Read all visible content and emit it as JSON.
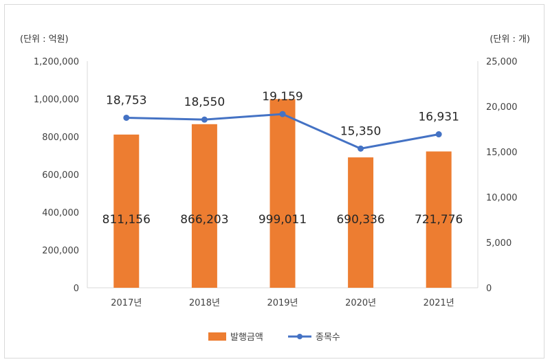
{
  "chart_data": {
    "type": "bar",
    "categories": [
      "2017년",
      "2018년",
      "2019년",
      "2020년",
      "2021년"
    ],
    "series": [
      {
        "name": "발행금액",
        "type": "bar",
        "axis": "left",
        "values": [
          811156,
          866203,
          999011,
          690336,
          721776
        ],
        "labels": [
          "811,156",
          "866,203",
          "999,011",
          "690,336",
          "721,776"
        ],
        "color": "#ed7d31"
      },
      {
        "name": "종목수",
        "type": "line",
        "axis": "right",
        "values": [
          18753,
          18550,
          19159,
          15350,
          16931
        ],
        "labels": [
          "18,753",
          "18,550",
          "19,159",
          "15,350",
          "16,931"
        ],
        "color": "#4472c4"
      }
    ],
    "y_left": {
      "unit_label": "(단위 : 억원)",
      "ylim": [
        0,
        1200000
      ],
      "ticks": [
        "0",
        "200,000",
        "400,000",
        "600,000",
        "800,000",
        "1,000,000",
        "1,200,000"
      ]
    },
    "y_right": {
      "unit_label": "(단위 : 개)",
      "ylim": [
        0,
        25000
      ],
      "ticks": [
        "0",
        "5,000",
        "10,000",
        "15,000",
        "20,000",
        "25,000"
      ]
    },
    "legend_position": "bottom",
    "grid": false
  }
}
